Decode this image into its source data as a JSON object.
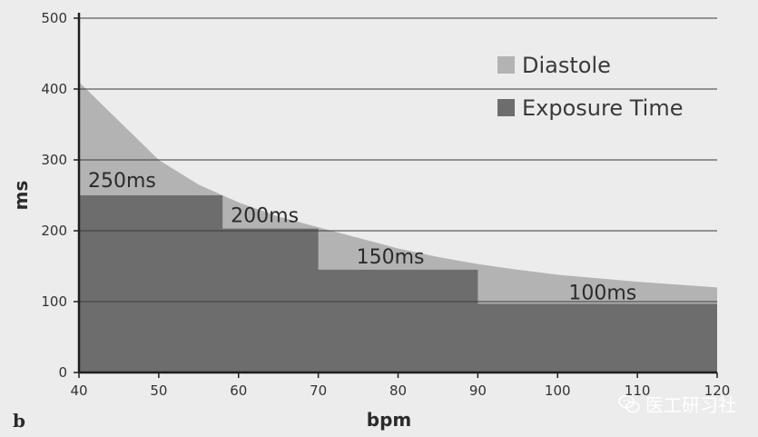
{
  "chart_data": {
    "type": "area",
    "xlabel": "bpm",
    "ylabel": "ms",
    "xlim": [
      40,
      120
    ],
    "ylim": [
      0,
      500
    ],
    "x_ticks": [
      "40",
      "50",
      "60",
      "70",
      "80",
      "90",
      "100",
      "110",
      "120"
    ],
    "y_ticks": [
      "0",
      "100",
      "200",
      "300",
      "400",
      "500"
    ],
    "grid": "horizontal",
    "legend_position": "top-right",
    "series": [
      {
        "name": "Diastole",
        "color": "#b3b3b3",
        "x": [
          40,
          45,
          50,
          55,
          60,
          65,
          70,
          75,
          80,
          85,
          90,
          95,
          100,
          105,
          110,
          115,
          120
        ],
        "values": [
          410,
          355,
          300,
          265,
          240,
          220,
          205,
          190,
          175,
          163,
          153,
          145,
          138,
          133,
          128,
          124,
          120
        ]
      },
      {
        "name": "Exposure Time",
        "color": "#6d6d6d",
        "steps": [
          {
            "x_start": 40,
            "x_end": 58,
            "value": 250,
            "label": "250ms"
          },
          {
            "x_start": 58,
            "x_end": 70,
            "value": 203,
            "label": "200ms"
          },
          {
            "x_start": 70,
            "x_end": 90,
            "value": 145,
            "label": "150ms"
          },
          {
            "x_start": 90,
            "x_end": 120,
            "value": 97,
            "label": "100ms"
          }
        ]
      }
    ],
    "panel_label": "b"
  },
  "watermark": {
    "text": "医工研习社",
    "icon": "wechat-icon"
  }
}
